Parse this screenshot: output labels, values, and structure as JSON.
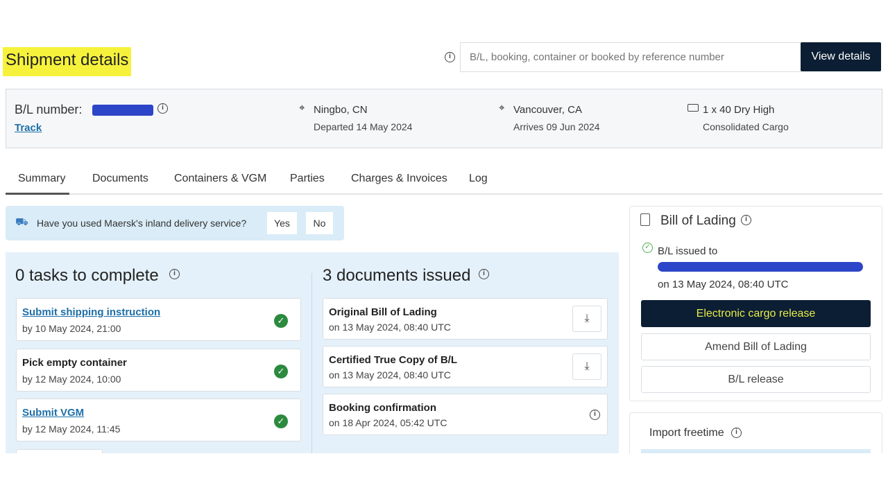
{
  "page": {
    "title": "Shipment details"
  },
  "search": {
    "placeholder": "B/L, booking, container or booked by reference number",
    "button": "View details"
  },
  "header": {
    "bl_label": "B/L number:",
    "track": "Track",
    "origin": {
      "city": "Ningbo, CN",
      "status": "Departed 14 May 2024"
    },
    "destination": {
      "city": "Vancouver, CA",
      "status": "Arrives 09 Jun 2024"
    },
    "container": {
      "type": "1 x 40 Dry High",
      "note": "Consolidated Cargo"
    }
  },
  "tabs": [
    {
      "label": "Summary",
      "active": true
    },
    {
      "label": "Documents"
    },
    {
      "label": "Containers & VGM"
    },
    {
      "label": "Parties"
    },
    {
      "label": "Charges & Invoices"
    },
    {
      "label": "Log"
    }
  ],
  "banner": {
    "text": "Have you used Maersk's inland delivery service?",
    "yes": "Yes",
    "no": "No"
  },
  "tasks": {
    "heading": "0 tasks to complete",
    "items": [
      {
        "title": "Submit shipping instruction",
        "sub": "by 10 May 2024, 21:00",
        "link": true
      },
      {
        "title": "Pick empty container",
        "sub": "by 12 May 2024, 10:00",
        "link": false
      },
      {
        "title": "Submit VGM",
        "sub": "by 12 May 2024, 11:45",
        "link": true
      }
    ]
  },
  "documents": {
    "heading": "3 documents issued",
    "items": [
      {
        "title": "Original Bill of Lading",
        "sub": "on 13 May 2024, 08:40 UTC",
        "action": "download"
      },
      {
        "title": "Certified True Copy of B/L",
        "sub": "on 13 May 2024, 08:40 UTC",
        "action": "download"
      },
      {
        "title": "Booking confirmation",
        "sub": "on 18 Apr 2024, 05:42 UTC",
        "action": "info"
      }
    ]
  },
  "bill_of_lading": {
    "title": "Bill of Lading",
    "issued_to": "B/L issued to",
    "issued_on": "on 13 May 2024, 08:40 UTC",
    "primary": "Electronic cargo release",
    "amend": "Amend Bill of Lading",
    "release": "B/L release"
  },
  "freetime": {
    "title": "Import freetime"
  },
  "colors": {
    "primary": "#0b1e33",
    "highlight": "#f6f23c",
    "link": "#1d6fa8",
    "success": "#2b8a3e",
    "panel": "#e5f1fa"
  }
}
